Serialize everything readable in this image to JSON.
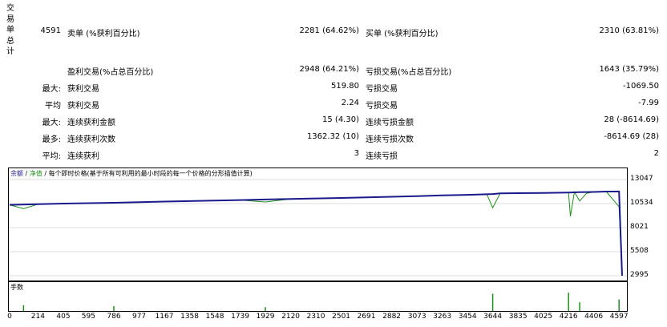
{
  "summary": {
    "title": "交易单总计",
    "total_trades": "4591",
    "short_label": "卖单 (%获利百分比)",
    "short_value": "2281 (64.62%)",
    "long_label": "买单 (%获利百分比)",
    "long_value": "2310 (63.81%)"
  },
  "rows": [
    {
      "prefix": "",
      "label1": "盈利交易(%占总百分比)",
      "value1": "2948 (64.21%)",
      "label2": "亏损交易(%占总百分比)",
      "value2": "1643 (35.79%)"
    },
    {
      "prefix": "最大:",
      "label1": "获利交易",
      "value1": "519.80",
      "label2": "亏损交易",
      "value2": "-1069.50"
    },
    {
      "prefix": "平均",
      "label1": "获利交易",
      "value1": "2.24",
      "label2": "亏损交易",
      "value2": "-7.99"
    },
    {
      "prefix": "最大:",
      "label1": "连续获利金额",
      "value1": "15 (4.30)",
      "label2": "连续亏损金额",
      "value2": "28 (-8614.69)"
    },
    {
      "prefix": "最多:",
      "label1": "连续获利次数",
      "value1": "1362.32 (10)",
      "label2": "连续亏损次数",
      "value2": "-8614.69 (28)"
    },
    {
      "prefix": "平均:",
      "label1": "连续获利",
      "value1": "3",
      "label2": "连续亏损",
      "value2": "2"
    }
  ],
  "chart_legend": {
    "balance": "余额",
    "sep1": " / ",
    "equity": "净值",
    "sep2": " / ",
    "description": "每个即时价格(基于所有可利用的最小时段的每一个价格的分形插值计算)"
  },
  "lots_label": "手数",
  "colors": {
    "balance": "#1a1a8c",
    "equity": "#1f8f1f",
    "lots": "#1f8f1f"
  },
  "chart_data": {
    "type": "line",
    "series": [
      {
        "name": "余额",
        "x": [
          0,
          214,
          405,
          595,
          786,
          977,
          1167,
          1358,
          1548,
          1739,
          1929,
          2120,
          2310,
          2501,
          2691,
          2882,
          3073,
          3263,
          3454,
          3644,
          3700,
          3835,
          4025,
          4216,
          4300,
          4406,
          4500,
          4597,
          4620
        ],
        "y": [
          10400,
          10470,
          10530,
          10580,
          10620,
          10680,
          10740,
          10790,
          10850,
          10900,
          10960,
          11010,
          11070,
          11120,
          11190,
          11250,
          11310,
          11390,
          11450,
          11530,
          11600,
          11620,
          11650,
          11690,
          11720,
          11750,
          11790,
          11800,
          2995
        ]
      },
      {
        "name": "净值",
        "x": [
          0,
          105,
          214,
          405,
          595,
          786,
          977,
          1167,
          1358,
          1548,
          1739,
          1929,
          2120,
          2310,
          2501,
          2691,
          2882,
          3073,
          3263,
          3454,
          3600,
          3644,
          3700,
          3835,
          4025,
          4216,
          4230,
          4260,
          4300,
          4350,
          4406,
          4500,
          4597,
          4620
        ],
        "y": [
          10400,
          10000,
          10470,
          10530,
          10580,
          10620,
          10680,
          10740,
          10790,
          10850,
          10900,
          10700,
          11010,
          11070,
          11120,
          11190,
          11250,
          11310,
          11390,
          11450,
          11500,
          10100,
          11600,
          11620,
          11650,
          11690,
          9200,
          11750,
          10800,
          11600,
          11750,
          11790,
          10200,
          2995
        ]
      }
    ],
    "y_ticks": [
      "13047",
      "10534",
      "8021",
      "5508",
      "2995"
    ],
    "y_values": [
      13047,
      10534,
      8021,
      5508,
      2995
    ],
    "ylim": [
      2995,
      13047
    ],
    "x_ticks": [
      "0",
      "214",
      "405",
      "595",
      "786",
      "977",
      "1167",
      "1358",
      "1548",
      "1739",
      "1929",
      "2120",
      "2310",
      "2501",
      "2691",
      "2882",
      "3073",
      "3263",
      "3454",
      "3644",
      "3835",
      "4025",
      "4216",
      "4406",
      "4597"
    ],
    "xlim": [
      0,
      4620
    ],
    "lots_spikes": [
      {
        "x": 105,
        "h": 0.3
      },
      {
        "x": 786,
        "h": 0.25
      },
      {
        "x": 1929,
        "h": 0.2
      },
      {
        "x": 3644,
        "h": 0.9
      },
      {
        "x": 4216,
        "h": 0.95
      },
      {
        "x": 4300,
        "h": 0.45
      },
      {
        "x": 4597,
        "h": 0.6
      }
    ]
  }
}
